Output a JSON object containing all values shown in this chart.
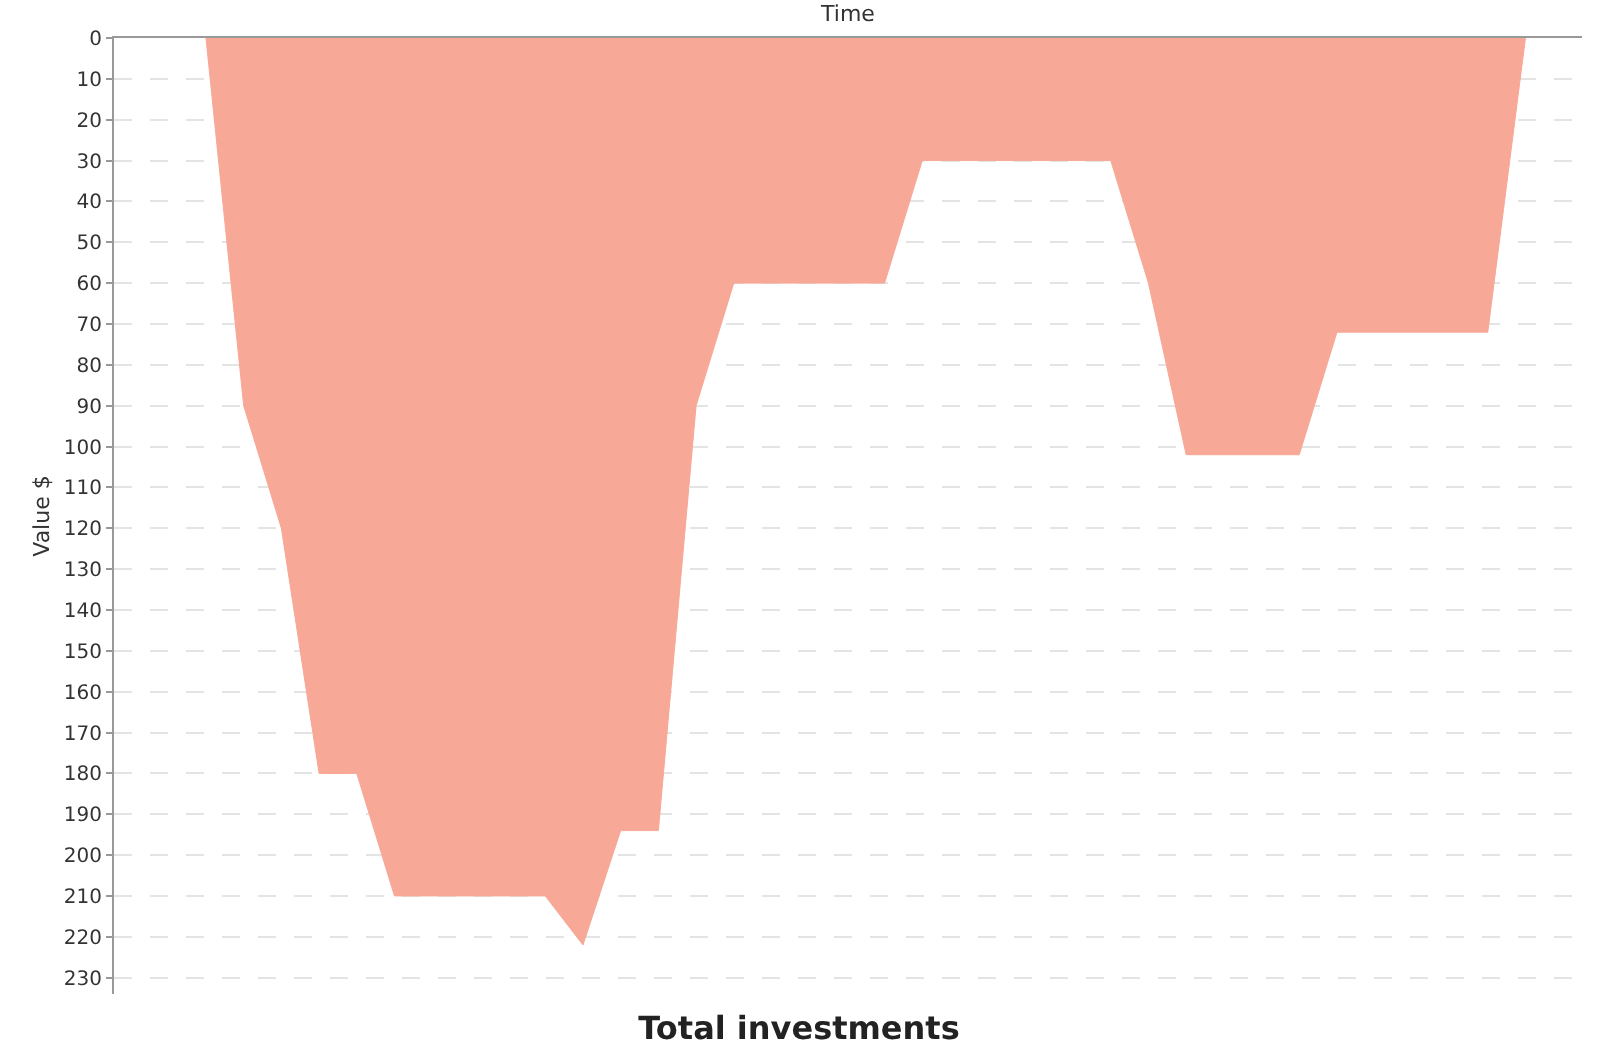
{
  "chart_data": {
    "type": "area",
    "title": "Total investments",
    "xlabel": "Time",
    "ylabel": "Value $",
    "categories": [
      null,
      null,
      null,
      null,
      null,
      null,
      null,
      null,
      null,
      null,
      null,
      null,
      null,
      null,
      null,
      null,
      null,
      null,
      null,
      null,
      null,
      null,
      null,
      null,
      null,
      null,
      null,
      null,
      null,
      null,
      null,
      null,
      null,
      null,
      null,
      null
    ],
    "series": [
      {
        "color": "#f7a896",
        "values": [
          0,
          90,
          120,
          180,
          180,
          210,
          210,
          210,
          210,
          210,
          222,
          194,
          194,
          90,
          60,
          60,
          60,
          60,
          60,
          30,
          30,
          30,
          30,
          30,
          30,
          60,
          102,
          102,
          102,
          102,
          72,
          72,
          72,
          72,
          72,
          0
        ]
      }
    ],
    "ylim": [
      234,
      0
    ],
    "yticks": [
      0,
      10,
      20,
      30,
      40,
      50,
      60,
      70,
      80,
      90,
      100,
      110,
      120,
      130,
      140,
      150,
      160,
      170,
      180,
      190,
      200,
      210,
      220,
      230
    ],
    "grid": "y",
    "legend": false
  }
}
